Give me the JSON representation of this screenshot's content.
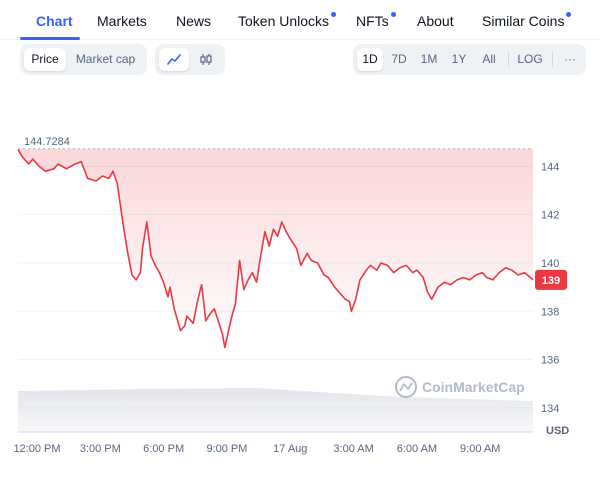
{
  "tabs": [
    {
      "label": "Chart",
      "active": true,
      "dot": false
    },
    {
      "label": "Markets",
      "active": false,
      "dot": false
    },
    {
      "label": "News",
      "active": false,
      "dot": false
    },
    {
      "label": "Token Unlocks",
      "active": false,
      "dot": true
    },
    {
      "label": "NFTs",
      "active": false,
      "dot": true
    },
    {
      "label": "About",
      "active": false,
      "dot": false
    },
    {
      "label": "Similar Coins",
      "active": false,
      "dot": true
    }
  ],
  "toolbar": {
    "metric": {
      "options": [
        "Price",
        "Market cap"
      ],
      "selected": "Price"
    },
    "chart_type": {
      "options": [
        "line-chart-icon",
        "candlestick-icon"
      ],
      "selected": "line-chart-icon"
    },
    "ranges": {
      "options": [
        "1D",
        "7D",
        "1M",
        "1Y",
        "All"
      ],
      "selected": "1D"
    },
    "log_label": "LOG",
    "more_label": "···"
  },
  "chart_data": {
    "type": "line",
    "start_label": "144.7284",
    "current_price_label": "139",
    "currency": "USD",
    "watermark": "CoinMarketCap",
    "ylim": [
      133,
      145.3
    ],
    "yticks": [
      144,
      142,
      140,
      138,
      136,
      134
    ],
    "xticks": [
      "12:00 PM",
      "3:00 PM",
      "6:00 PM",
      "9:00 PM",
      "17 Aug",
      "3:00 AM",
      "6:00 AM",
      "9:00 AM"
    ],
    "xtick_hours": [
      12,
      15,
      18,
      21,
      24,
      27,
      30,
      33
    ],
    "xlim_hours": [
      11.1,
      35.5
    ],
    "start_value": 144.73,
    "series": [
      {
        "color": "#ea3943",
        "points": [
          [
            11.1,
            144.7
          ],
          [
            11.3,
            144.4
          ],
          [
            11.6,
            144.1
          ],
          [
            11.8,
            144.3
          ],
          [
            12.1,
            144.0
          ],
          [
            12.4,
            143.8
          ],
          [
            12.8,
            143.9
          ],
          [
            13.0,
            144.1
          ],
          [
            13.4,
            143.9
          ],
          [
            13.8,
            144.1
          ],
          [
            14.1,
            144.2
          ],
          [
            14.4,
            143.5
          ],
          [
            14.8,
            143.4
          ],
          [
            15.1,
            143.6
          ],
          [
            15.4,
            143.5
          ],
          [
            15.6,
            143.8
          ],
          [
            15.8,
            143.3
          ],
          [
            16.1,
            141.5
          ],
          [
            16.3,
            140.4
          ],
          [
            16.5,
            139.5
          ],
          [
            16.7,
            139.3
          ],
          [
            16.9,
            139.6
          ],
          [
            17.0,
            140.6
          ],
          [
            17.2,
            141.7
          ],
          [
            17.4,
            140.3
          ],
          [
            17.6,
            139.9
          ],
          [
            17.8,
            139.6
          ],
          [
            18.0,
            139.2
          ],
          [
            18.2,
            138.6
          ],
          [
            18.3,
            139.0
          ],
          [
            18.5,
            138.1
          ],
          [
            18.6,
            137.8
          ],
          [
            18.8,
            137.2
          ],
          [
            19.0,
            137.4
          ],
          [
            19.1,
            137.8
          ],
          [
            19.4,
            137.5
          ],
          [
            19.6,
            138.4
          ],
          [
            19.8,
            139.1
          ],
          [
            20.0,
            137.6
          ],
          [
            20.2,
            137.9
          ],
          [
            20.4,
            138.1
          ],
          [
            20.7,
            137.3
          ],
          [
            20.8,
            137.0
          ],
          [
            20.9,
            136.5
          ],
          [
            21.0,
            136.9
          ],
          [
            21.2,
            137.7
          ],
          [
            21.4,
            138.3
          ],
          [
            21.6,
            140.1
          ],
          [
            21.8,
            138.9
          ],
          [
            22.0,
            139.3
          ],
          [
            22.2,
            139.6
          ],
          [
            22.4,
            139.2
          ],
          [
            22.6,
            140.3
          ],
          [
            22.8,
            141.3
          ],
          [
            23.0,
            140.7
          ],
          [
            23.2,
            141.4
          ],
          [
            23.4,
            141.1
          ],
          [
            23.6,
            141.7
          ],
          [
            23.8,
            141.3
          ],
          [
            24.0,
            141.0
          ],
          [
            24.3,
            140.6
          ],
          [
            24.5,
            139.9
          ],
          [
            24.8,
            140.4
          ],
          [
            25.0,
            140.1
          ],
          [
            25.3,
            140.0
          ],
          [
            25.6,
            139.5
          ],
          [
            25.8,
            139.4
          ],
          [
            26.1,
            139.0
          ],
          [
            26.4,
            138.7
          ],
          [
            26.6,
            138.5
          ],
          [
            26.8,
            138.4
          ],
          [
            26.9,
            138.0
          ],
          [
            27.1,
            138.5
          ],
          [
            27.3,
            139.3
          ],
          [
            27.6,
            139.7
          ],
          [
            27.8,
            139.9
          ],
          [
            28.1,
            139.7
          ],
          [
            28.3,
            140.0
          ],
          [
            28.6,
            139.9
          ],
          [
            28.9,
            139.6
          ],
          [
            29.2,
            139.8
          ],
          [
            29.5,
            139.9
          ],
          [
            29.8,
            139.6
          ],
          [
            30.0,
            139.7
          ],
          [
            30.3,
            139.4
          ],
          [
            30.5,
            138.8
          ],
          [
            30.7,
            138.5
          ],
          [
            31.0,
            139.0
          ],
          [
            31.3,
            139.2
          ],
          [
            31.6,
            139.1
          ],
          [
            31.9,
            139.3
          ],
          [
            32.2,
            139.4
          ],
          [
            32.5,
            139.3
          ],
          [
            32.8,
            139.5
          ],
          [
            33.1,
            139.6
          ],
          [
            33.3,
            139.4
          ],
          [
            33.6,
            139.3
          ],
          [
            33.9,
            139.6
          ],
          [
            34.2,
            139.8
          ],
          [
            34.5,
            139.7
          ],
          [
            34.8,
            139.5
          ],
          [
            35.1,
            139.6
          ],
          [
            35.5,
            139.3
          ]
        ]
      }
    ]
  }
}
